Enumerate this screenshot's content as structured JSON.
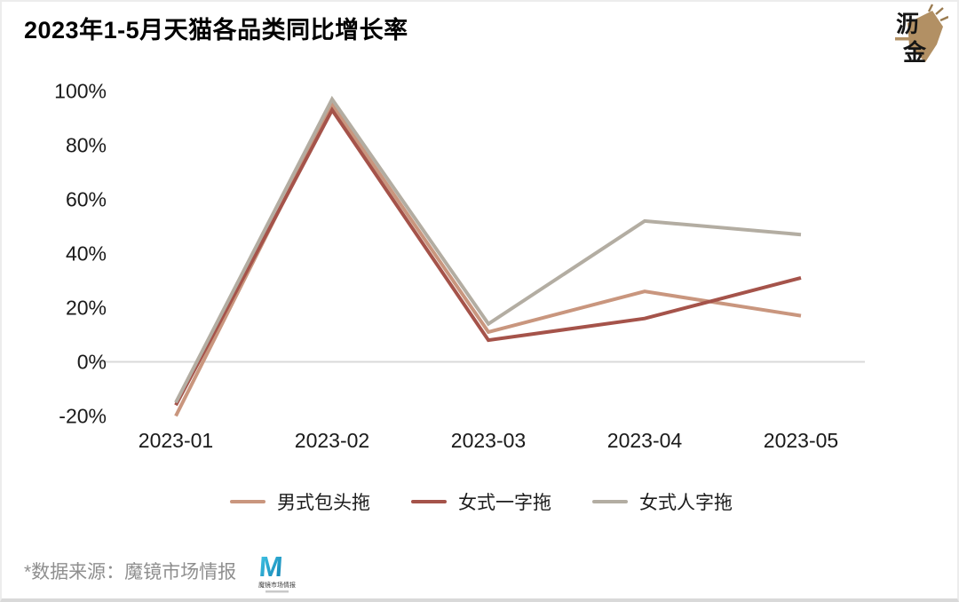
{
  "header": {
    "title": "2023年1-5月天猫各品类同比增长率"
  },
  "brand": {
    "char_top": "沥",
    "char_bottom": "金",
    "accent_color": "#b29064"
  },
  "chart_data": {
    "type": "line",
    "title": "2023年1-5月天猫各品类同比增长率",
    "categories": [
      "2023-01",
      "2023-02",
      "2023-03",
      "2023-04",
      "2023-05"
    ],
    "series": [
      {
        "name": "男式包头拖",
        "color": "#c9967e",
        "values": [
          -20,
          95,
          11,
          26,
          17
        ]
      },
      {
        "name": "女式一字拖",
        "color": "#a5534a",
        "values": [
          -16,
          93,
          8,
          16,
          31
        ]
      },
      {
        "name": "女式人字拖",
        "color": "#b3ada2",
        "values": [
          -15,
          97,
          14,
          52,
          47
        ]
      }
    ],
    "y_ticks": [
      100,
      80,
      60,
      40,
      20,
      0,
      -20
    ],
    "y_tick_suffix": "%",
    "ylim": [
      -25,
      105
    ],
    "grid": "zero-line-only",
    "zero_line_color": "#d9d9d9",
    "axis_text_color": "#1a1a1a",
    "legend_position": "bottom"
  },
  "footer": {
    "source_note": "*数据来源：魔镜市场情报",
    "logo_letter": "M",
    "logo_name": "魔镜市场情报",
    "logo_color_start": "#45c8e8",
    "logo_color_end": "#0f7fb0"
  }
}
